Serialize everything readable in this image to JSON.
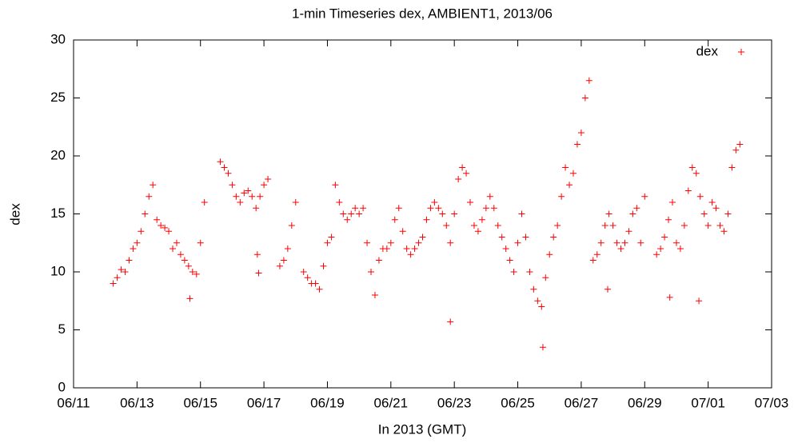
{
  "chart_data": {
    "type": "scatter",
    "title": "1-min Timeseries dex, AMBIENT1, 2013/06",
    "xlabel": "In 2013 (GMT)",
    "ylabel": "dex",
    "legend": "top-right",
    "xlim": [
      "2013-06-11T00:00",
      "2013-07-03T00:00"
    ],
    "xticks": [
      {
        "value": "2013-06-11T00:00",
        "label": "06/11"
      },
      {
        "value": "2013-06-13T00:00",
        "label": "06/13"
      },
      {
        "value": "2013-06-15T00:00",
        "label": "06/15"
      },
      {
        "value": "2013-06-17T00:00",
        "label": "06/17"
      },
      {
        "value": "2013-06-19T00:00",
        "label": "06/19"
      },
      {
        "value": "2013-06-21T00:00",
        "label": "06/21"
      },
      {
        "value": "2013-06-23T00:00",
        "label": "06/23"
      },
      {
        "value": "2013-06-25T00:00",
        "label": "06/25"
      },
      {
        "value": "2013-06-27T00:00",
        "label": "06/27"
      },
      {
        "value": "2013-06-29T00:00",
        "label": "06/29"
      },
      {
        "value": "2013-07-01T00:00",
        "label": "07/01"
      },
      {
        "value": "2013-07-03T00:00",
        "label": "07/03"
      }
    ],
    "ylim": [
      0,
      30
    ],
    "yticks": [
      0,
      5,
      10,
      15,
      20,
      25,
      30
    ],
    "series": [
      {
        "name": "dex",
        "color": "#ff0000",
        "x": [
          "2013-06-12T06:00",
          "2013-06-12T09:00",
          "2013-06-12T12:00",
          "2013-06-12T15:00",
          "2013-06-12T18:00",
          "2013-06-12T21:00",
          "2013-06-13T00:00",
          "2013-06-13T03:00",
          "2013-06-13T06:00",
          "2013-06-13T09:00",
          "2013-06-13T12:00",
          "2013-06-13T15:00",
          "2013-06-13T18:00",
          "2013-06-13T21:00",
          "2013-06-14T00:00",
          "2013-06-14T03:00",
          "2013-06-14T06:00",
          "2013-06-14T09:00",
          "2013-06-14T12:00",
          "2013-06-14T15:00",
          "2013-06-14T18:00",
          "2013-06-14T21:00",
          "2013-06-15T00:00",
          "2013-06-15T03:00",
          "2013-06-15T15:00",
          "2013-06-15T18:00",
          "2013-06-15T21:00",
          "2013-06-16T00:00",
          "2013-06-16T03:00",
          "2013-06-16T06:00",
          "2013-06-16T09:00",
          "2013-06-16T12:00",
          "2013-06-16T15:00",
          "2013-06-16T18:00",
          "2013-06-16T21:00",
          "2013-06-17T00:00",
          "2013-06-17T03:00",
          "2013-06-17T12:00",
          "2013-06-17T15:00",
          "2013-06-17T18:00",
          "2013-06-17T21:00",
          "2013-06-18T00:00",
          "2013-06-18T06:00",
          "2013-06-18T09:00",
          "2013-06-18T12:00",
          "2013-06-18T15:00",
          "2013-06-18T18:00",
          "2013-06-18T21:00",
          "2013-06-19T00:00",
          "2013-06-19T03:00",
          "2013-06-19T06:00",
          "2013-06-19T09:00",
          "2013-06-19T12:00",
          "2013-06-19T15:00",
          "2013-06-19T18:00",
          "2013-06-19T21:00",
          "2013-06-20T00:00",
          "2013-06-20T03:00",
          "2013-06-20T06:00",
          "2013-06-20T09:00",
          "2013-06-20T12:00",
          "2013-06-20T15:00",
          "2013-06-20T18:00",
          "2013-06-20T21:00",
          "2013-06-21T00:00",
          "2013-06-21T03:00",
          "2013-06-21T06:00",
          "2013-06-21T09:00",
          "2013-06-21T12:00",
          "2013-06-21T15:00",
          "2013-06-21T18:00",
          "2013-06-21T21:00",
          "2013-06-22T00:00",
          "2013-06-22T03:00",
          "2013-06-22T06:00",
          "2013-06-22T09:00",
          "2013-06-22T12:00",
          "2013-06-22T15:00",
          "2013-06-22T18:00",
          "2013-06-22T21:00",
          "2013-06-23T00:00",
          "2013-06-23T03:00",
          "2013-06-23T06:00",
          "2013-06-23T09:00",
          "2013-06-23T12:00",
          "2013-06-23T15:00",
          "2013-06-23T18:00",
          "2013-06-23T21:00",
          "2013-06-24T00:00",
          "2013-06-24T03:00",
          "2013-06-24T06:00",
          "2013-06-24T09:00",
          "2013-06-24T12:00",
          "2013-06-24T15:00",
          "2013-06-24T18:00",
          "2013-06-24T21:00",
          "2013-06-25T00:00",
          "2013-06-25T03:00",
          "2013-06-25T06:00",
          "2013-06-25T09:00",
          "2013-06-25T12:00",
          "2013-06-25T15:00",
          "2013-06-25T18:00",
          "2013-06-25T21:00",
          "2013-06-26T00:00",
          "2013-06-26T03:00",
          "2013-06-26T06:00",
          "2013-06-26T09:00",
          "2013-06-26T12:00",
          "2013-06-26T15:00",
          "2013-06-26T18:00",
          "2013-06-26T21:00",
          "2013-06-27T00:00",
          "2013-06-27T03:00",
          "2013-06-27T06:00",
          "2013-06-27T09:00",
          "2013-06-27T12:00",
          "2013-06-27T15:00",
          "2013-06-27T18:00",
          "2013-06-27T21:00",
          "2013-06-28T00:00",
          "2013-06-28T03:00",
          "2013-06-28T06:00",
          "2013-06-28T09:00",
          "2013-06-28T12:00",
          "2013-06-28T15:00",
          "2013-06-28T18:00",
          "2013-06-28T21:00",
          "2013-06-29T00:00",
          "2013-06-29T09:00",
          "2013-06-29T12:00",
          "2013-06-29T15:00",
          "2013-06-29T18:00",
          "2013-06-29T21:00",
          "2013-06-30T00:00",
          "2013-06-30T03:00",
          "2013-06-30T06:00",
          "2013-06-30T09:00",
          "2013-06-30T12:00",
          "2013-06-30T15:00",
          "2013-06-30T18:00",
          "2013-06-30T21:00",
          "2013-07-01T00:00",
          "2013-07-01T03:00",
          "2013-07-01T06:00",
          "2013-07-01T09:00",
          "2013-07-01T12:00",
          "2013-07-01T15:00",
          "2013-07-01T18:00",
          "2013-07-01T21:00",
          "2013-07-02T00:00",
          "2013-06-22T21:00",
          "2013-06-25T19:00",
          "2013-06-29T19:00",
          "2013-06-30T17:00",
          "2013-06-14T16:00",
          "2013-06-27T20:00",
          "2013-06-16T20:00",
          "2013-06-16T19:00"
        ],
        "values": [
          9.0,
          9.5,
          10.2,
          10.0,
          11.0,
          12.0,
          12.5,
          13.5,
          15.0,
          16.5,
          17.5,
          14.5,
          14.0,
          13.8,
          13.5,
          12.0,
          12.5,
          11.5,
          11.0,
          10.5,
          10.0,
          9.8,
          12.5,
          16.0,
          19.5,
          19.0,
          18.5,
          17.5,
          16.5,
          16.0,
          16.8,
          17.0,
          16.5,
          15.5,
          16.5,
          17.5,
          18.0,
          10.5,
          11.0,
          12.0,
          14.0,
          16.0,
          10.0,
          9.5,
          9.0,
          9.0,
          8.5,
          10.5,
          12.5,
          13.0,
          17.5,
          16.0,
          15.0,
          14.5,
          15.0,
          15.5,
          15.0,
          15.5,
          12.5,
          10.0,
          8.0,
          11.0,
          12.0,
          12.0,
          12.5,
          14.5,
          15.5,
          13.5,
          12.0,
          11.5,
          12.0,
          12.5,
          13.0,
          14.5,
          15.5,
          16.0,
          15.5,
          15.0,
          14.0,
          12.5,
          15.0,
          18.0,
          19.0,
          18.5,
          16.0,
          14.0,
          13.5,
          14.5,
          15.5,
          16.5,
          15.5,
          14.0,
          13.0,
          12.0,
          11.0,
          10.0,
          12.5,
          15.0,
          13.0,
          10.0,
          8.5,
          7.5,
          7.0,
          9.5,
          11.5,
          13.0,
          14.0,
          16.5,
          19.0,
          17.5,
          18.5,
          21.0,
          22.0,
          25.0,
          26.5,
          11.0,
          11.5,
          12.5,
          14.0,
          15.0,
          14.0,
          12.5,
          12.0,
          12.5,
          13.5,
          15.0,
          15.5,
          12.5,
          16.5,
          11.5,
          12.0,
          13.0,
          14.5,
          16.0,
          12.5,
          12.0,
          14.0,
          17.0,
          19.0,
          18.5,
          16.5,
          15.0,
          14.0,
          16.0,
          15.5,
          14.0,
          13.5,
          15.0,
          19.0,
          20.5,
          21.0,
          5.7,
          3.5,
          7.8,
          7.5,
          7.7,
          8.5,
          9.9,
          11.5
        ]
      }
    ]
  }
}
